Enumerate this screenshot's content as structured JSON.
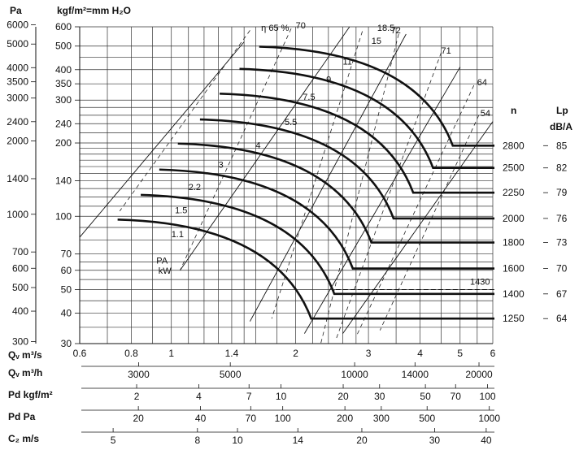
{
  "header": {
    "pa_unit": "Pa",
    "kgf_unit": "kgf/m²=mm H₂O",
    "n_label": "n",
    "lp_label": "Lp",
    "lp_unit": "dB/A"
  },
  "chart_data": {
    "type": "line",
    "title": "",
    "x_scale": "log",
    "y_scale": "log",
    "xlim": [
      0.6,
      6
    ],
    "ylim": [
      30,
      600
    ],
    "xlabel": "Qᵥ m³/s",
    "ylabel": "kgf/m²=mm H₂O",
    "x_ticks": [
      {
        "v": 0.6,
        "l": "0.6"
      },
      {
        "v": 0.8,
        "l": "0.8"
      },
      {
        "v": 1,
        "l": "1"
      },
      {
        "v": 1.4,
        "l": "1.4"
      },
      {
        "v": 2,
        "l": "2"
      },
      {
        "v": 3,
        "l": "3"
      },
      {
        "v": 4,
        "l": "4"
      },
      {
        "v": 5,
        "l": "5"
      },
      {
        "v": 6,
        "l": "6"
      }
    ],
    "y_ticks": [
      {
        "v": 30,
        "l": "30"
      },
      {
        "v": 40,
        "l": "40"
      },
      {
        "v": 50,
        "l": "50"
      },
      {
        "v": 60,
        "l": "60"
      },
      {
        "v": 70,
        "l": "70"
      },
      {
        "v": 100,
        "l": "100"
      },
      {
        "v": 140,
        "l": "140"
      },
      {
        "v": 200,
        "l": "200"
      },
      {
        "v": 240,
        "l": "240"
      },
      {
        "v": 300,
        "l": "300"
      },
      {
        "v": 350,
        "l": "350"
      },
      {
        "v": 400,
        "l": "400"
      },
      {
        "v": 500,
        "l": "500"
      },
      {
        "v": 600,
        "l": "600"
      }
    ],
    "pa_ticks": [
      {
        "v": 300,
        "l": "300"
      },
      {
        "v": 400,
        "l": "400"
      },
      {
        "v": 500,
        "l": "500"
      },
      {
        "v": 600,
        "l": "600"
      },
      {
        "v": 700,
        "l": "700"
      },
      {
        "v": 1000,
        "l": "1000"
      },
      {
        "v": 1400,
        "l": "1400"
      },
      {
        "v": 2000,
        "l": "2000"
      },
      {
        "v": 2400,
        "l": "2400"
      },
      {
        "v": 3000,
        "l": "3000"
      },
      {
        "v": 3500,
        "l": "3500"
      },
      {
        "v": 4000,
        "l": "4000"
      },
      {
        "v": 5000,
        "l": "5000"
      },
      {
        "v": 6000,
        "l": "6000"
      }
    ],
    "curves": [
      {
        "n": "1250",
        "lp": "64",
        "q_knee": 2.18,
        "p_knee": 38
      },
      {
        "n": "1400",
        "lp": "67",
        "q_knee": 2.48,
        "p_knee": 48
      },
      {
        "n": "1600",
        "lp": "70",
        "q_knee": 2.75,
        "p_knee": 61
      },
      {
        "n": "1800",
        "lp": "73",
        "q_knee": 3.05,
        "p_knee": 78
      },
      {
        "n": "2000",
        "lp": "76",
        "q_knee": 3.45,
        "p_knee": 98
      },
      {
        "n": "2250",
        "lp": "79",
        "q_knee": 3.85,
        "p_knee": 125
      },
      {
        "n": "2500",
        "lp": "82",
        "q_knee": 4.3,
        "p_knee": 158
      },
      {
        "n": "2800",
        "lp": "85",
        "q_knee": 4.8,
        "p_knee": 195
      }
    ],
    "power_labels": [
      {
        "t": "1.1",
        "q": 1.0,
        "p": 82
      },
      {
        "t": "1.5",
        "q": 1.02,
        "p": 103
      },
      {
        "t": "2.2",
        "q": 1.1,
        "p": 128
      },
      {
        "t": "3",
        "q": 1.3,
        "p": 158
      },
      {
        "t": "4",
        "q": 1.6,
        "p": 190
      },
      {
        "t": "5.5",
        "q": 1.88,
        "p": 237
      },
      {
        "t": "7.5",
        "q": 2.08,
        "p": 300
      },
      {
        "t": "9",
        "q": 2.37,
        "p": 355
      },
      {
        "t": "11",
        "q": 2.6,
        "p": 420
      },
      {
        "t": "15",
        "q": 3.05,
        "p": 510
      },
      {
        "t": "18.5",
        "q": 3.15,
        "p": 578
      }
    ],
    "efficiency_labels": [
      {
        "t": "η 65 %",
        "q": 1.65,
        "p": 578
      },
      {
        "t": "70",
        "q": 2.0,
        "p": 590
      },
      {
        "t": "72",
        "q": 3.4,
        "p": 565
      },
      {
        "t": "71",
        "q": 4.5,
        "p": 465
      },
      {
        "t": "64",
        "q": 5.5,
        "p": 345
      },
      {
        "t": "54",
        "q": 5.6,
        "p": 258
      }
    ],
    "pa_kw_label": [
      "PA",
      "kW"
    ],
    "rpm_extra": "1430",
    "bottom_scales": [
      {
        "label": "Qᵥ m³/h",
        "ticks": [
          {
            "v": 3000,
            "l": "3000"
          },
          {
            "v": 5000,
            "l": "5000"
          },
          {
            "v": 10000,
            "l": "10000"
          },
          {
            "v": 14000,
            "l": "14000"
          },
          {
            "v": 20000,
            "l": "20000"
          }
        ]
      },
      {
        "label": "Pd kgf/m²",
        "ticks": [
          {
            "v": 2,
            "l": "2"
          },
          {
            "v": 4,
            "l": "4"
          },
          {
            "v": 7,
            "l": "7"
          },
          {
            "v": 10,
            "l": "10"
          },
          {
            "v": 20,
            "l": "20"
          },
          {
            "v": 30,
            "l": "30"
          },
          {
            "v": 50,
            "l": "50"
          },
          {
            "v": 70,
            "l": "70"
          },
          {
            "v": 100,
            "l": "100"
          }
        ]
      },
      {
        "label": "Pd Pa",
        "ticks": [
          {
            "v": 20,
            "l": "20"
          },
          {
            "v": 40,
            "l": "40"
          },
          {
            "v": 70,
            "l": "70"
          },
          {
            "v": 100,
            "l": "100"
          },
          {
            "v": 200,
            "l": "200"
          },
          {
            "v": 300,
            "l": "300"
          },
          {
            "v": 500,
            "l": "500"
          },
          {
            "v": 1000,
            "l": "1000"
          }
        ]
      },
      {
        "label": "C₂ m/s",
        "ticks": [
          {
            "v": 5,
            "l": "5"
          },
          {
            "v": 8,
            "l": "8"
          },
          {
            "v": 10,
            "l": "10"
          },
          {
            "v": 14,
            "l": "14"
          },
          {
            "v": 20,
            "l": "20"
          },
          {
            "v": 30,
            "l": "30"
          },
          {
            "v": 40,
            "l": "40"
          }
        ]
      }
    ]
  }
}
